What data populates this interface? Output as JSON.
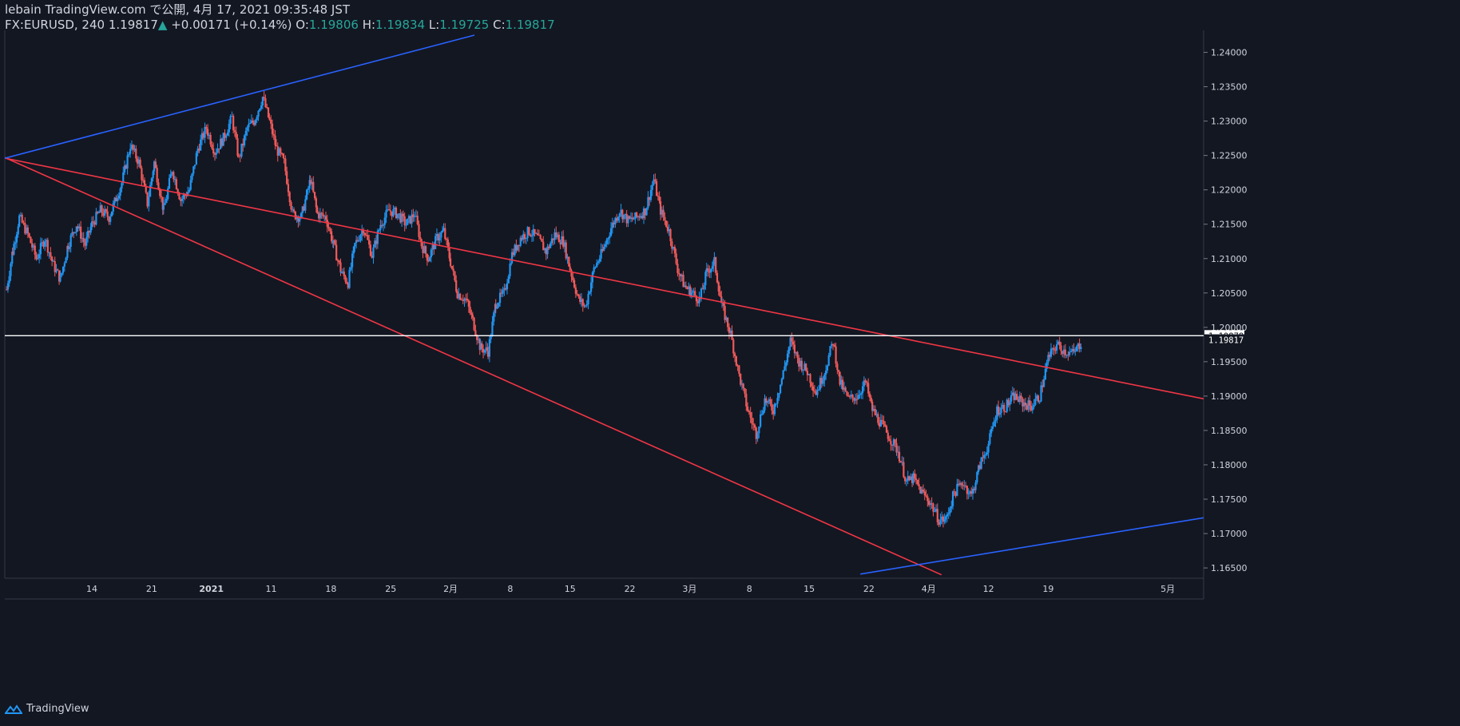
{
  "header": {
    "publish_line": "lebain TradingView.com で公開, 4月 17, 2021 09:35:48 JST",
    "symbol": "FX:EURUSD, 240",
    "last": "1.19817",
    "change": "+0.00171 (+0.14%)",
    "o_label": "O:",
    "o": "1.19806",
    "h_label": "H:",
    "h": "1.19834",
    "l_label": "L:",
    "l": "1.19725",
    "c_label": "C:",
    "c": "1.19817"
  },
  "footer": {
    "brand": "TradingView"
  },
  "chart_data": {
    "type": "candlestick",
    "symbol": "FX:EURUSD",
    "timeframe": "240",
    "y_ticks": [
      "1.16500",
      "1.17000",
      "1.17500",
      "1.18000",
      "1.18500",
      "1.19000",
      "1.19500",
      "1.20000",
      "1.20500",
      "1.21000",
      "1.21500",
      "1.22000",
      "1.22500",
      "1.23000",
      "1.23500",
      "1.24000"
    ],
    "ylim": [
      1.1635,
      1.2432
    ],
    "x_ticks": [
      {
        "label": "14",
        "day": 14
      },
      {
        "label": "21",
        "day": 21
      },
      {
        "label": "2021",
        "day": 28
      },
      {
        "label": "11",
        "day": 35
      },
      {
        "label": "18",
        "day": 42
      },
      {
        "label": "25",
        "day": 49
      },
      {
        "label": "2月",
        "day": 56
      },
      {
        "label": "8",
        "day": 63
      },
      {
        "label": "15",
        "day": 70
      },
      {
        "label": "22",
        "day": 77
      },
      {
        "label": "3月",
        "day": 84
      },
      {
        "label": "8",
        "day": 91
      },
      {
        "label": "15",
        "day": 98
      },
      {
        "label": "22",
        "day": 105
      },
      {
        "label": "4月",
        "day": 112
      },
      {
        "label": "12",
        "day": 119
      },
      {
        "label": "19",
        "day": 126
      },
      {
        "label": "5月",
        "day": 140
      }
    ],
    "xlim": [
      3.8,
      144.2
    ],
    "price_path": [
      [
        4.0,
        1.2055
      ],
      [
        4.7,
        1.211
      ],
      [
        5.5,
        1.216
      ],
      [
        6.5,
        1.2135
      ],
      [
        7.5,
        1.21
      ],
      [
        8.5,
        1.213
      ],
      [
        9.5,
        1.209
      ],
      [
        10.3,
        1.207
      ],
      [
        11.2,
        1.212
      ],
      [
        12.2,
        1.215
      ],
      [
        13.2,
        1.212
      ],
      [
        14.0,
        1.215
      ],
      [
        15.0,
        1.217
      ],
      [
        16.0,
        1.216
      ],
      [
        17.5,
        1.221
      ],
      [
        18.5,
        1.2265
      ],
      [
        19.5,
        1.224
      ],
      [
        20.5,
        1.218
      ],
      [
        21.3,
        1.224
      ],
      [
        22.4,
        1.217
      ],
      [
        23.4,
        1.223
      ],
      [
        24.4,
        1.2185
      ],
      [
        25.4,
        1.22
      ],
      [
        26.4,
        1.226
      ],
      [
        27.4,
        1.229
      ],
      [
        28.4,
        1.2255
      ],
      [
        29.4,
        1.2275
      ],
      [
        30.4,
        1.2305
      ],
      [
        31.2,
        1.2245
      ],
      [
        32.2,
        1.229
      ],
      [
        33.0,
        1.23
      ],
      [
        34.0,
        1.2335
      ],
      [
        34.8,
        1.23
      ],
      [
        35.6,
        1.226
      ],
      [
        36.5,
        1.224
      ],
      [
        37.5,
        1.2165
      ],
      [
        38.5,
        1.216
      ],
      [
        39.6,
        1.2215
      ],
      [
        40.4,
        1.2165
      ],
      [
        41.4,
        1.216
      ],
      [
        42.3,
        1.212
      ],
      [
        43.2,
        1.208
      ],
      [
        44.0,
        1.2065
      ],
      [
        44.8,
        1.212
      ],
      [
        45.8,
        1.2145
      ],
      [
        46.8,
        1.2105
      ],
      [
        47.8,
        1.215
      ],
      [
        48.8,
        1.217
      ],
      [
        49.8,
        1.2165
      ],
      [
        50.8,
        1.215
      ],
      [
        51.8,
        1.2165
      ],
      [
        52.6,
        1.212
      ],
      [
        53.4,
        1.21
      ],
      [
        54.4,
        1.213
      ],
      [
        55.2,
        1.214
      ],
      [
        56.0,
        1.2095
      ],
      [
        56.8,
        1.205
      ],
      [
        57.8,
        1.204
      ],
      [
        58.6,
        1.201
      ],
      [
        59.5,
        1.197
      ],
      [
        60.4,
        1.1965
      ],
      [
        61.3,
        1.2035
      ],
      [
        62.3,
        1.205
      ],
      [
        63.2,
        1.2105
      ],
      [
        64.2,
        1.213
      ],
      [
        65.2,
        1.214
      ],
      [
        66.2,
        1.213
      ],
      [
        67.2,
        1.211
      ],
      [
        68.2,
        1.2135
      ],
      [
        69.2,
        1.2125
      ],
      [
        70.0,
        1.2085
      ],
      [
        71.0,
        1.204
      ],
      [
        71.8,
        1.203
      ],
      [
        72.8,
        1.2085
      ],
      [
        73.8,
        1.211
      ],
      [
        74.8,
        1.2145
      ],
      [
        75.8,
        1.217
      ],
      [
        76.8,
        1.2155
      ],
      [
        77.8,
        1.216
      ],
      [
        78.8,
        1.217
      ],
      [
        79.8,
        1.2215
      ],
      [
        80.6,
        1.217
      ],
      [
        81.6,
        1.214
      ],
      [
        82.6,
        1.2085
      ],
      [
        83.4,
        1.206
      ],
      [
        84.3,
        1.205
      ],
      [
        85.2,
        1.204
      ],
      [
        86.0,
        1.208
      ],
      [
        86.9,
        1.2095
      ],
      [
        87.8,
        1.203
      ],
      [
        88.8,
        1.199
      ],
      [
        89.8,
        1.193
      ],
      [
        90.8,
        1.188
      ],
      [
        91.8,
        1.1845
      ],
      [
        92.8,
        1.1895
      ],
      [
        93.8,
        1.188
      ],
      [
        94.8,
        1.1925
      ],
      [
        95.8,
        1.198
      ],
      [
        96.8,
        1.195
      ],
      [
        97.8,
        1.1935
      ],
      [
        98.8,
        1.1905
      ],
      [
        99.8,
        1.1935
      ],
      [
        100.8,
        1.198
      ],
      [
        101.6,
        1.192
      ],
      [
        102.6,
        1.1895
      ],
      [
        103.6,
        1.19
      ],
      [
        104.6,
        1.192
      ],
      [
        105.4,
        1.188
      ],
      [
        106.4,
        1.186
      ],
      [
        107.4,
        1.184
      ],
      [
        108.4,
        1.182
      ],
      [
        109.4,
        1.1775
      ],
      [
        110.2,
        1.178
      ],
      [
        111.2,
        1.176
      ],
      [
        112.2,
        1.1745
      ],
      [
        113.2,
        1.172
      ],
      [
        114.0,
        1.172
      ],
      [
        115.0,
        1.176
      ],
      [
        116.0,
        1.1775
      ],
      [
        117.0,
        1.1755
      ],
      [
        118.0,
        1.18
      ],
      [
        119.0,
        1.183
      ],
      [
        120.0,
        1.188
      ],
      [
        121.0,
        1.1885
      ],
      [
        122.0,
        1.19
      ],
      [
        123.0,
        1.189
      ],
      [
        124.0,
        1.1885
      ],
      [
        125.0,
        1.19
      ],
      [
        126.0,
        1.1955
      ],
      [
        127.0,
        1.1975
      ],
      [
        128.0,
        1.1965
      ],
      [
        129.0,
        1.1962
      ],
      [
        130.0,
        1.1981
      ]
    ],
    "last_close": 1.19817,
    "last_close_label": "1.19817",
    "horizontal_line": 1.19878,
    "horizontal_line_label": "1.19878",
    "trendlines": [
      {
        "color": "#f23645",
        "from": [
          3.8,
          1.2246
        ],
        "to": [
          144.2,
          1.1896
        ]
      },
      {
        "color": "#f23645",
        "from": [
          3.8,
          1.2247
        ],
        "to": [
          113.5,
          1.164
        ]
      },
      {
        "color": "#2962ff",
        "from": [
          3.8,
          1.2246
        ],
        "to": [
          58.8,
          1.2425
        ]
      },
      {
        "color": "#2962ff",
        "from": [
          104.0,
          1.1641
        ],
        "to": [
          144.2,
          1.1723
        ]
      }
    ],
    "colors": {
      "up": "#2196f3",
      "down": "#f05a5a",
      "background": "#131722",
      "text": "#d1d4dc",
      "positive": "#26a69a"
    }
  }
}
